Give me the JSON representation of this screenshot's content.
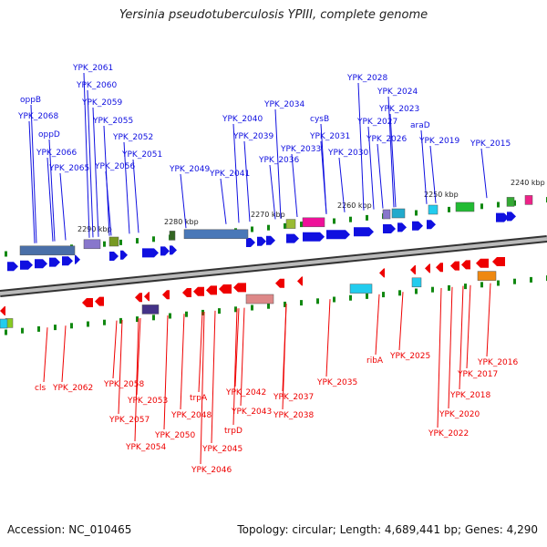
{
  "title": "Yersinia pseudotuberculosis YPIII, complete genome",
  "footer": {
    "accession": "Accession: NC_010465",
    "info": "Topology: circular; Length: 4,689,441 bp; Genes: 4,290"
  },
  "colors": {
    "forward": "#1010e0",
    "reverse": "#ee0000",
    "backbone": "#666666",
    "tick": "#118811"
  },
  "scale_labels": [
    "2290 kbp",
    "2280 kbp",
    "2270 kbp",
    "2260 kbp",
    "2250 kbp",
    "2240 kbp"
  ],
  "forward_labels": [
    "oppB",
    "YPK_2068",
    "oppD",
    "YPK_2066",
    "YPK_2065",
    "YPK_2061",
    "YPK_2060",
    "YPK_2059",
    "YPK_2055",
    "YPK_2056",
    "YPK_2052",
    "YPK_2051",
    "YPK_2049",
    "YPK_2040",
    "YPK_2039",
    "YPK_2041",
    "YPK_2034",
    "YPK_2036",
    "YPK_2033",
    "cysB",
    "YPK_2031",
    "YPK_2030",
    "YPK_2028",
    "YPK_2024",
    "YPK_2027",
    "YPK_2023",
    "araD",
    "YPK_2026",
    "YPK_2019",
    "YPK_2015"
  ],
  "reverse_labels": [
    "cls",
    "YPK_2062",
    "YPK_2058",
    "YPK_2053",
    "YPK_2057",
    "YPK_2054",
    "YPK_2050",
    "YPK_2048",
    "trpA",
    "YPK_2045",
    "YPK_2046",
    "trpD",
    "YPK_2043",
    "YPK_2042",
    "YPK_2037",
    "YPK_2038",
    "YPK_2035",
    "ribA",
    "YPK_2025",
    "YPK_2022",
    "YPK_2020",
    "YPK_2018",
    "YPK_2017",
    "YPK_2016"
  ]
}
